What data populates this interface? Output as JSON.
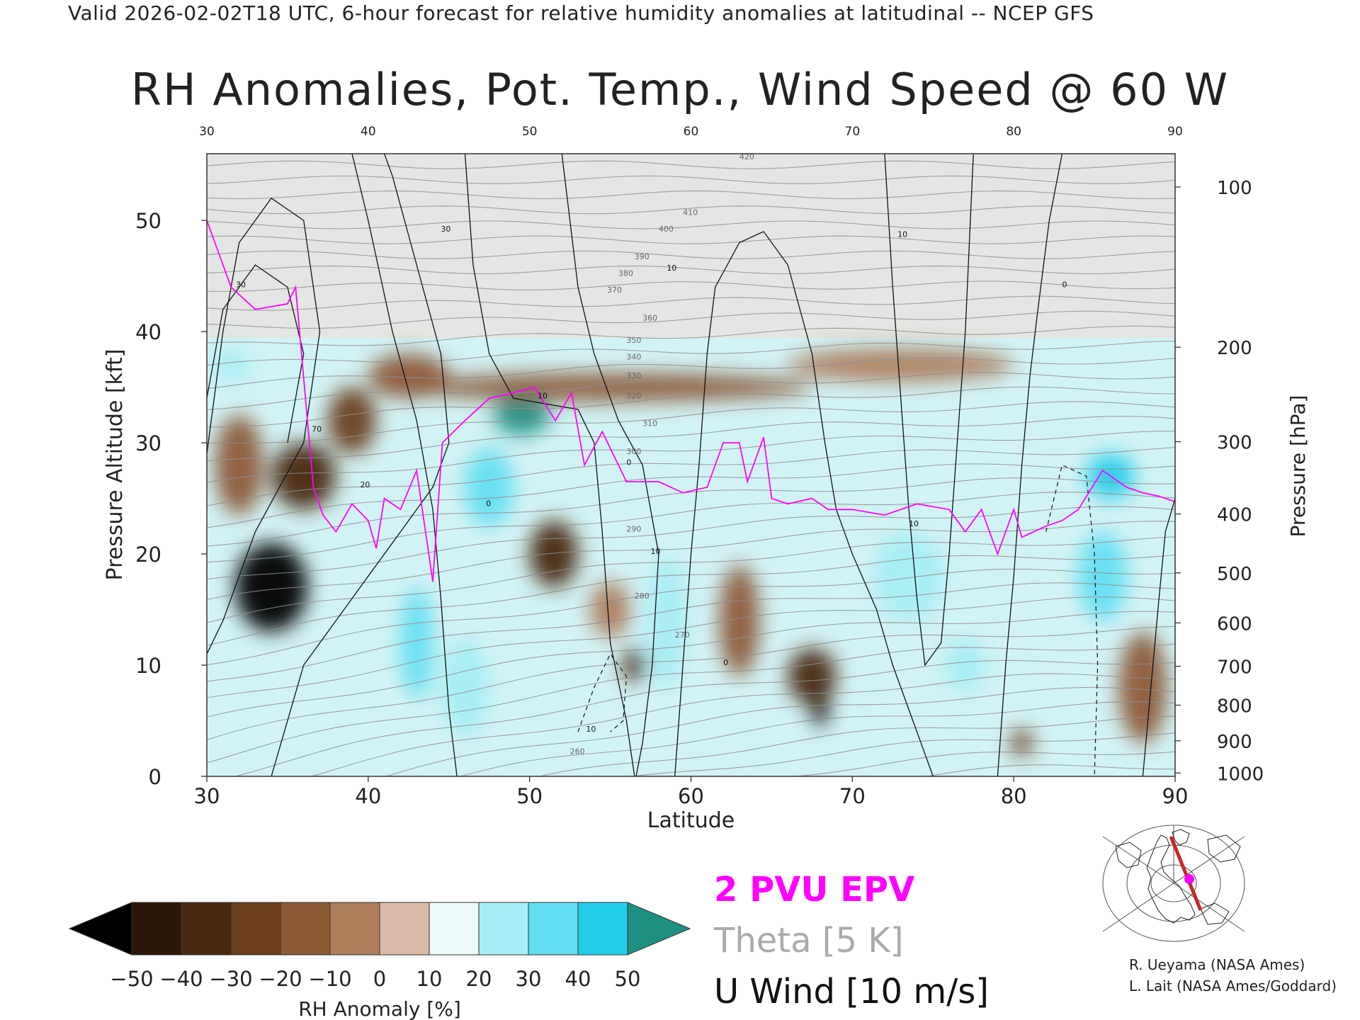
{
  "header": {
    "valid_line": "Valid 2026-02-02T18 UTC, 6-hour forecast for relative humidity anomalies at latitudinal -- NCEP GFS",
    "title": "RH Anomalies, Pot. Temp., Wind Speed @ 60 W"
  },
  "chart_data": {
    "type": "heatmap",
    "title": "RH Anomalies, Pot. Temp., Wind Speed @ 60 W",
    "xlabel": "Latitude",
    "ylabel": "Pressure Altitude [kft]",
    "ylabel_right": "Pressure [hPa]",
    "xlim": [
      30,
      90
    ],
    "ylim": [
      0,
      56
    ],
    "x_ticks": [
      30,
      40,
      50,
      60,
      70,
      80,
      90
    ],
    "y_ticks": [
      0,
      10,
      20,
      30,
      40,
      50
    ],
    "pressure_ticks": [
      {
        "label": "100",
        "kft": 53.0
      },
      {
        "label": "200",
        "kft": 38.6
      },
      {
        "label": "300",
        "kft": 30.1
      },
      {
        "label": "400",
        "kft": 23.6
      },
      {
        "label": "500",
        "kft": 18.3
      },
      {
        "label": "600",
        "kft": 13.8
      },
      {
        "label": "700",
        "kft": 9.9
      },
      {
        "label": "800",
        "kft": 6.4
      },
      {
        "label": "900",
        "kft": 3.2
      },
      {
        "label": "1000",
        "kft": 0.3
      }
    ],
    "colorbar": {
      "label": "RH Anomaly [%]",
      "ticks": [
        "−50",
        "−40",
        "−30",
        "−20",
        "−10",
        "0",
        "10",
        "20",
        "30",
        "40",
        "50"
      ],
      "colors": [
        "#2b1607",
        "#4a2810",
        "#6b3e1e",
        "#8c5a35",
        "#ad7d5c",
        "#d9b9a6",
        "#eef9fa",
        "#a8edf5",
        "#62def0",
        "#22cde8",
        "#0aa2c4"
      ],
      "under_color": "#000000",
      "over_color": "#1f8e83"
    },
    "series": [
      {
        "name": "2 PVU EPV",
        "color": "#ff00ff",
        "points": [
          [
            30,
            50
          ],
          [
            31.5,
            44
          ],
          [
            33,
            42
          ],
          [
            35,
            42.5
          ],
          [
            35.5,
            44
          ],
          [
            36.6,
            26
          ],
          [
            37.2,
            23.5
          ],
          [
            38,
            22
          ],
          [
            39,
            24.5
          ],
          [
            40,
            23
          ],
          [
            40.5,
            20.5
          ],
          [
            41,
            25
          ],
          [
            42,
            24
          ],
          [
            43,
            27.5
          ],
          [
            44,
            17.5
          ],
          [
            44.6,
            30
          ],
          [
            46,
            32
          ],
          [
            47.5,
            34
          ],
          [
            49,
            34.5
          ],
          [
            50.3,
            35
          ],
          [
            51.6,
            32
          ],
          [
            52.6,
            34.5
          ],
          [
            53.4,
            28
          ],
          [
            54.5,
            31
          ],
          [
            56,
            26.5
          ],
          [
            58,
            26.5
          ],
          [
            59.5,
            25.5
          ],
          [
            61,
            26
          ],
          [
            62,
            30
          ],
          [
            63,
            30
          ],
          [
            63.5,
            26.5
          ],
          [
            64.5,
            30.5
          ],
          [
            65,
            25
          ],
          [
            66,
            24.5
          ],
          [
            67.5,
            25
          ],
          [
            68.5,
            24
          ],
          [
            70,
            24
          ],
          [
            72,
            23.5
          ],
          [
            74,
            24.5
          ],
          [
            76,
            24
          ],
          [
            77,
            22
          ],
          [
            78,
            24
          ],
          [
            79,
            20
          ],
          [
            80,
            24
          ],
          [
            80.5,
            21.5
          ],
          [
            82,
            22.5
          ],
          [
            83,
            23
          ],
          [
            84,
            24
          ],
          [
            85.5,
            27.5
          ],
          [
            87,
            26
          ],
          [
            88,
            25.5
          ],
          [
            89,
            25.2
          ],
          [
            90,
            24.7
          ]
        ]
      },
      {
        "name": "Theta [5 K]",
        "color": "#888888",
        "spacing_K": 5
      },
      {
        "name": "U Wind [10 m/s]",
        "color": "#000000",
        "spacing_m_s": 10
      }
    ],
    "theta_labels": [
      "420",
      "410",
      "400",
      "390",
      "380",
      "370",
      "360",
      "350",
      "340",
      "330",
      "320",
      "310",
      "300",
      "290",
      "280",
      "270",
      "260"
    ],
    "wind_labels": [
      "30",
      "70",
      "20",
      "30",
      "10",
      "0",
      "10",
      "0",
      "10",
      "0",
      "10",
      "10",
      "10",
      "0"
    ],
    "rh_blobs": [
      {
        "lat": 34,
        "kft": 17,
        "w": 4.5,
        "h": 8,
        "rh": -60
      },
      {
        "lat": 36,
        "kft": 27,
        "w": 4,
        "h": 6,
        "rh": -40
      },
      {
        "lat": 32,
        "kft": 28,
        "w": 3,
        "h": 9,
        "rh": -25
      },
      {
        "lat": 39,
        "kft": 32,
        "w": 3,
        "h": 6,
        "rh": -35
      },
      {
        "lat": 42.5,
        "kft": 36,
        "w": 5,
        "h": 4,
        "rh": -25
      },
      {
        "lat": 31.5,
        "kft": 37,
        "w": 2.5,
        "h": 3,
        "rh": 18
      },
      {
        "lat": 43,
        "kft": 12,
        "w": 2,
        "h": 10,
        "rh": 25
      },
      {
        "lat": 46,
        "kft": 8,
        "w": 3,
        "h": 9,
        "rh": 22
      },
      {
        "lat": 47.5,
        "kft": 26,
        "w": 3,
        "h": 7,
        "rh": 30
      },
      {
        "lat": 49.5,
        "kft": 32.5,
        "w": 3.5,
        "h": 3.5,
        "rh": 55
      },
      {
        "lat": 51.5,
        "kft": 20,
        "w": 3,
        "h": 6,
        "rh": -38
      },
      {
        "lat": 56.5,
        "kft": 10,
        "w": 1.4,
        "h": 3,
        "rh": -42
      },
      {
        "lat": 55,
        "kft": 15,
        "w": 2.5,
        "h": 5,
        "rh": -12
      },
      {
        "lat": 58.5,
        "kft": 14,
        "w": 2.5,
        "h": 12,
        "rh": 24
      },
      {
        "lat": 63,
        "kft": 14,
        "w": 2.5,
        "h": 10,
        "rh": -22
      },
      {
        "lat": 67.5,
        "kft": 9,
        "w": 3,
        "h": 5,
        "rh": -45
      },
      {
        "lat": 68,
        "kft": 6,
        "w": 1,
        "h": 3,
        "rh": -60
      },
      {
        "lat": 73.5,
        "kft": 18,
        "w": 4.5,
        "h": 8,
        "rh": 20
      },
      {
        "lat": 77,
        "kft": 10,
        "w": 2.5,
        "h": 5,
        "rh": 15
      },
      {
        "lat": 80.5,
        "kft": 3,
        "w": 1.3,
        "h": 2.5,
        "rh": -28
      },
      {
        "lat": 86,
        "kft": 27,
        "w": 3,
        "h": 4,
        "rh": 38
      },
      {
        "lat": 85.5,
        "kft": 18,
        "w": 3,
        "h": 8,
        "rh": 25
      },
      {
        "lat": 88,
        "kft": 8,
        "w": 3,
        "h": 10,
        "rh": -20
      },
      {
        "lat": 55,
        "kft": 35,
        "w": 25,
        "h": 2.5,
        "rh": -16
      },
      {
        "lat": 73,
        "kft": 37,
        "w": 14,
        "h": 3,
        "rh": -12
      }
    ]
  },
  "legend": {
    "epv": "2 PVU EPV",
    "epv_color": "#ff00ff",
    "theta": "Theta [5 K]",
    "theta_color": "#aaaaaa",
    "wind": "U Wind [10 m/s]",
    "wind_color": "#111111"
  },
  "credits": {
    "line1": "R. Ueyama (NASA Ames)",
    "line2": "L. Lait (NASA Ames/Goddard)"
  }
}
